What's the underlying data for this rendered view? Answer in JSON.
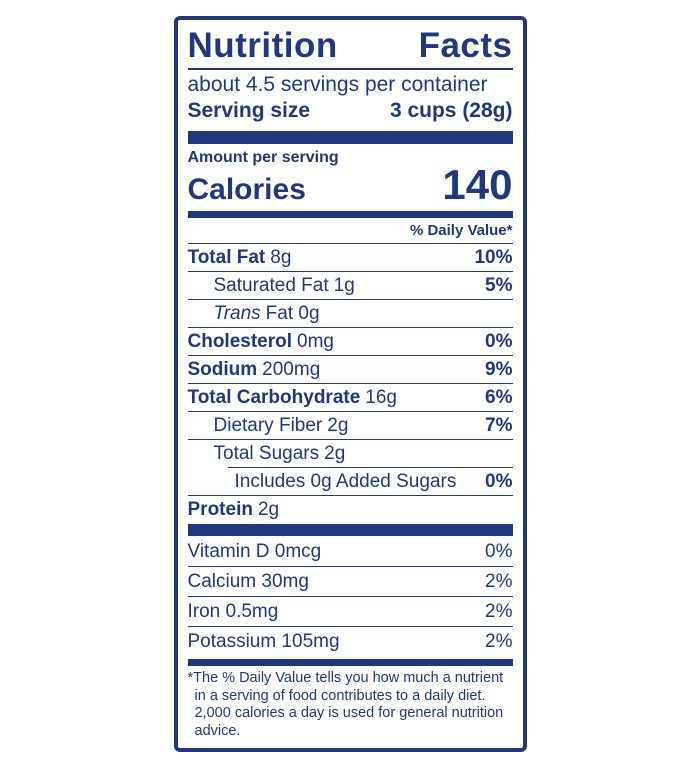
{
  "colors": {
    "navy": "#21397c"
  },
  "header": {
    "title_words": [
      "Nutrition",
      "Facts"
    ],
    "servings_per_container": "about 4.5 servings per container",
    "serving_size_label": "Serving size",
    "serving_size_value": "3 cups (28g)"
  },
  "calories": {
    "amount_per_serving_label": "Amount per serving",
    "label": "Calories",
    "value": "140"
  },
  "daily_value_header": "% Daily Value*",
  "nutrients": [
    {
      "name": "Total Fat",
      "amount": "8g",
      "dv": "10%"
    },
    {
      "name": "Saturated Fat",
      "amount": "1g",
      "dv": "5%"
    },
    {
      "name": "Trans",
      "amount": "Fat 0g",
      "dv": ""
    },
    {
      "name": "Cholesterol",
      "amount": "0mg",
      "dv": "0%"
    },
    {
      "name": "Sodium",
      "amount": "200mg",
      "dv": "9%"
    },
    {
      "name": "Total Carbohydrate",
      "amount": "16g",
      "dv": "6%"
    },
    {
      "name": "Dietary Fiber",
      "amount": "2g",
      "dv": "7%"
    },
    {
      "name": "Total Sugars",
      "amount": "2g",
      "dv": ""
    },
    {
      "name": "Includes 0g Added Sugars",
      "amount": "",
      "dv": "0%"
    },
    {
      "name": "Protein",
      "amount": "2g",
      "dv": ""
    }
  ],
  "vitamins": [
    {
      "name": "Vitamin D 0mcg",
      "dv": "0%"
    },
    {
      "name": "Calcium 30mg",
      "dv": "2%"
    },
    {
      "name": "Iron 0.5mg",
      "dv": "2%"
    },
    {
      "name": "Potassium 105mg",
      "dv": "2%"
    }
  ],
  "footnote": "*The % Daily Value tells you how much a nutrient in a serving of food contributes to a daily diet. 2,000 calories a day is used for general nutrition advice."
}
